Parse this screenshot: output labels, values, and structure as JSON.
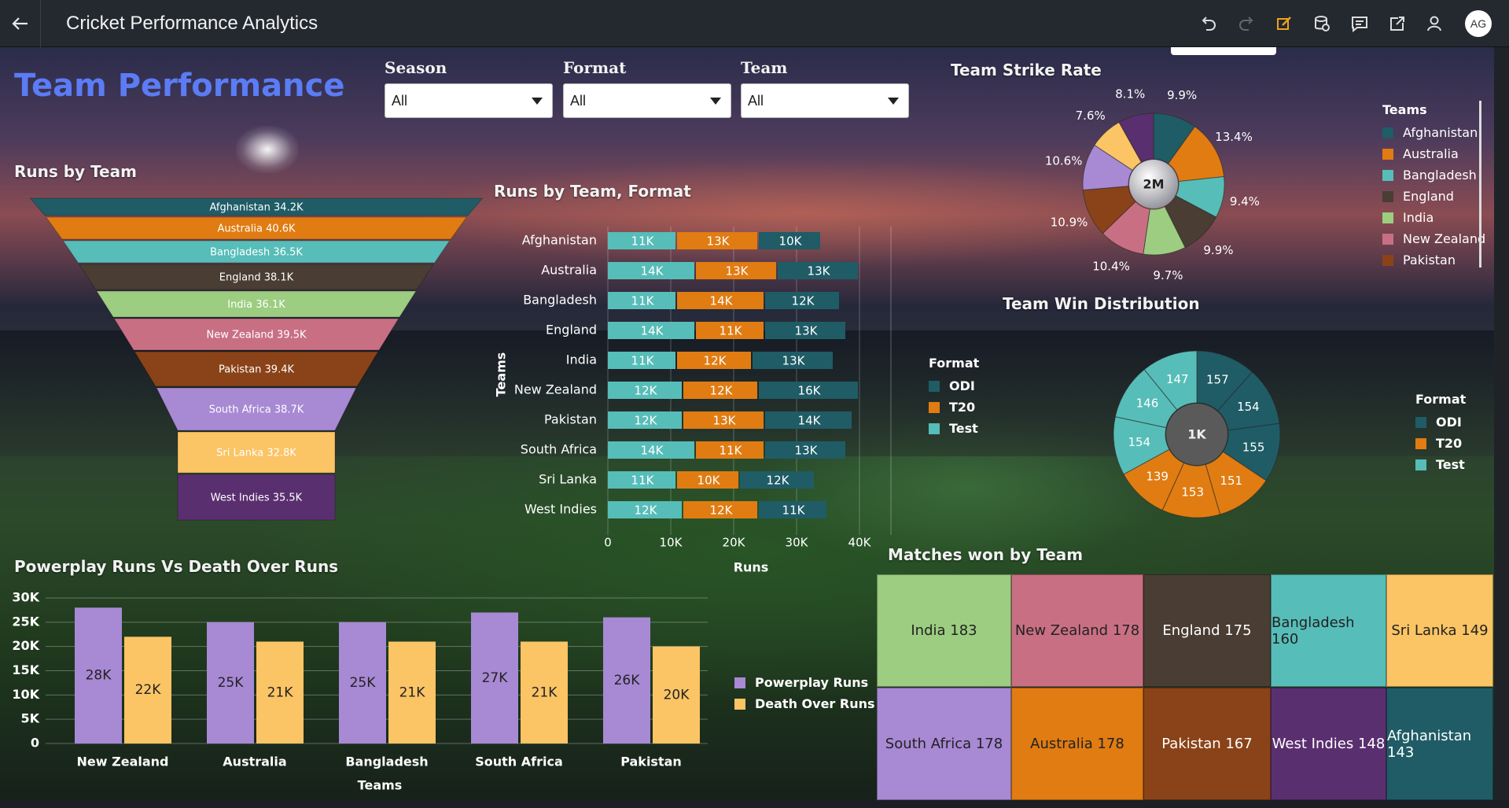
{
  "app": {
    "title": "Cricket Performance Analytics",
    "avatar_initials": "AG"
  },
  "toolbar": {
    "icons": [
      "back-arrow-icon",
      "undo-icon",
      "redo-icon",
      "edit-icon",
      "data-icon",
      "comment-icon",
      "export-icon",
      "share-user-icon"
    ],
    "accent": "#f0a020"
  },
  "page": {
    "title": "Team Performance",
    "title_color": "#5b7cf5"
  },
  "filters": [
    {
      "label": "Season",
      "value": "All"
    },
    {
      "label": "Format",
      "value": "All"
    },
    {
      "label": "Team",
      "value": "All"
    }
  ],
  "colors": {
    "Afghanistan": "#1f5c66",
    "Australia": "#e07c12",
    "Bangladesh": "#57bdb8",
    "England": "#4a3d33",
    "India": "#9ccd81",
    "New Zealand": "#c96f84",
    "Pakistan": "#8a4318",
    "South Africa": "#a889d4",
    "Sri Lanka": "#fbc465",
    "West Indies": "#5a2f6f",
    "ODI": "#1f5c66",
    "T20": "#e07c12",
    "Test": "#57bdb8",
    "Powerplay": "#a889d4",
    "Death": "#fbc465"
  },
  "sections": {
    "runs_by_team": "Runs by Team",
    "runs_by_team_format": "Runs by Team, Format",
    "strike_rate": "Team Strike Rate",
    "win_distribution": "Team Win Distribution",
    "powerplay": "Powerplay Runs Vs Death Over Runs",
    "matches_won": "Matches won by Team"
  },
  "legends": {
    "teams": {
      "title": "Teams",
      "items": [
        "Afghanistan",
        "Australia",
        "Bangladesh",
        "England",
        "India",
        "New Zealand",
        "Pakistan"
      ]
    },
    "format1": {
      "title": "Format",
      "items": [
        "ODI",
        "T20",
        "Test"
      ]
    },
    "format2": {
      "title": "Format",
      "items": [
        "ODI",
        "T20",
        "Test"
      ]
    },
    "powerplay": {
      "items": [
        "Powerplay Runs",
        "Death Over Runs"
      ]
    }
  },
  "chart_data": [
    {
      "type": "funnel",
      "title": "Runs by Team",
      "categories": [
        "Afghanistan",
        "Australia",
        "Bangladesh",
        "England",
        "India",
        "New Zealand",
        "Pakistan",
        "South Africa",
        "Sri Lanka",
        "West Indies"
      ],
      "labels": [
        "Afghanistan 34.2K",
        "Australia 40.6K",
        "Bangladesh 36.5K",
        "England 38.1K",
        "India 36.1K",
        "New Zealand 39.5K",
        "Pakistan 39.4K",
        "South Africa 38.7K",
        "Sri Lanka 32.8K",
        "West Indies 35.5K"
      ],
      "values": [
        34200,
        40600,
        36500,
        38100,
        36100,
        39500,
        39400,
        38700,
        32800,
        35500
      ]
    },
    {
      "type": "bar",
      "orientation": "horizontal",
      "stacked": true,
      "title": "Runs by Team, Format",
      "xlabel": "Runs",
      "ylabel": "Teams",
      "categories": [
        "Afghanistan",
        "Australia",
        "Bangladesh",
        "England",
        "India",
        "New Zealand",
        "Pakistan",
        "South Africa",
        "Sri Lanka",
        "West Indies"
      ],
      "xlim": [
        0,
        45000
      ],
      "xticks": [
        "0",
        "10K",
        "20K",
        "30K",
        "40K"
      ],
      "series": [
        {
          "name": "Test",
          "values": [
            11000,
            14000,
            11000,
            14000,
            11000,
            12000,
            12000,
            14000,
            11000,
            12000
          ],
          "labels": [
            "11K",
            "14K",
            "11K",
            "14K",
            "11K",
            "12K",
            "12K",
            "14K",
            "11K",
            "12K"
          ]
        },
        {
          "name": "T20",
          "values": [
            13000,
            13000,
            14000,
            11000,
            12000,
            12000,
            13000,
            11000,
            10000,
            12000
          ],
          "labels": [
            "13K",
            "13K",
            "14K",
            "11K",
            "12K",
            "12K",
            "13K",
            "11K",
            "10K",
            "12K"
          ]
        },
        {
          "name": "ODI",
          "values": [
            10000,
            13000,
            12000,
            13000,
            13000,
            16000,
            14000,
            13000,
            12000,
            11000
          ],
          "labels": [
            "10K",
            "13K",
            "12K",
            "13K",
            "13K",
            "16K",
            "14K",
            "13K",
            "12K",
            "11K"
          ]
        }
      ]
    },
    {
      "type": "pie",
      "title": "Team Strike Rate",
      "center_label": "2M",
      "categories": [
        "Afghanistan",
        "Australia",
        "Bangladesh",
        "England",
        "India",
        "New Zealand",
        "Pakistan",
        "South Africa",
        "Sri Lanka",
        "West Indies"
      ],
      "values": [
        9.9,
        13.4,
        9.4,
        9.9,
        9.7,
        10.4,
        10.9,
        10.6,
        7.6,
        8.1
      ],
      "labels": [
        "9.9%",
        "13.4%",
        "9.4%",
        "9.9%",
        "9.7%",
        "10.4%",
        "10.9%",
        "10.6%",
        "7.6%",
        "8.1%"
      ]
    },
    {
      "type": "pie",
      "title": "Team Win Distribution",
      "center_label": "1K",
      "categories": [
        "ODI",
        "ODI",
        "ODI",
        "T20",
        "T20",
        "T20",
        "Test",
        "Test",
        "Test"
      ],
      "values": [
        157,
        154,
        155,
        151,
        153,
        139,
        154,
        146,
        147
      ],
      "labels": [
        "157",
        "154",
        "155",
        "151",
        "153",
        "139",
        "154",
        "146",
        "147"
      ]
    },
    {
      "type": "bar",
      "title": "Powerplay Runs Vs Death Over Runs",
      "xlabel": "Teams",
      "ylabel": "",
      "categories": [
        "New Zealand",
        "Australia",
        "Bangladesh",
        "South Africa",
        "Pakistan"
      ],
      "ylim": [
        0,
        30000
      ],
      "yticks": [
        "0",
        "5K",
        "10K",
        "15K",
        "20K",
        "25K",
        "30K"
      ],
      "series": [
        {
          "name": "Powerplay Runs",
          "values": [
            28000,
            25000,
            25000,
            27000,
            26000
          ],
          "labels": [
            "28K",
            "25K",
            "25K",
            "27K",
            "26K"
          ]
        },
        {
          "name": "Death Over Runs",
          "values": [
            22000,
            21000,
            21000,
            21000,
            20000
          ],
          "labels": [
            "22K",
            "21K",
            "21K",
            "21K",
            "20K"
          ]
        }
      ]
    },
    {
      "type": "treemap",
      "title": "Matches won by Team",
      "categories": [
        "India",
        "New Zealand",
        "England",
        "Bangladesh",
        "Sri Lanka",
        "South Africa",
        "Australia",
        "Pakistan",
        "West Indies",
        "Afghanistan"
      ],
      "values": [
        183,
        178,
        175,
        160,
        149,
        178,
        178,
        167,
        148,
        143
      ],
      "labels": [
        "India 183",
        "New Zealand 178",
        "England 175",
        "Bangladesh 160",
        "Sri Lanka 149",
        "South Africa 178",
        "Australia 178",
        "Pakistan 167",
        "West Indies 148",
        "Afghanistan 143"
      ]
    }
  ]
}
